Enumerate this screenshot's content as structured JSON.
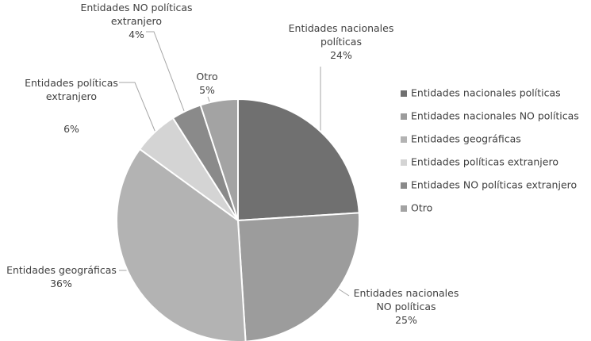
{
  "chart_data": {
    "type": "pie",
    "categories": [
      "Entidades nacionales políticas",
      "Entidades nacionales NO políticas",
      "Entidades geográficas",
      "Entidades políticas extranjero",
      "Entidades NO políticas extranjero",
      "Otro"
    ],
    "values": [
      24,
      25,
      36,
      6,
      4,
      5
    ],
    "value_labels": [
      "24%",
      "25%",
      "36%",
      "6%",
      "4%",
      "5%"
    ],
    "colors": [
      "#707070",
      "#9c9c9c",
      "#b3b3b3",
      "#d4d4d4",
      "#8a8a8a",
      "#a3a3a3"
    ],
    "legend": "right"
  }
}
